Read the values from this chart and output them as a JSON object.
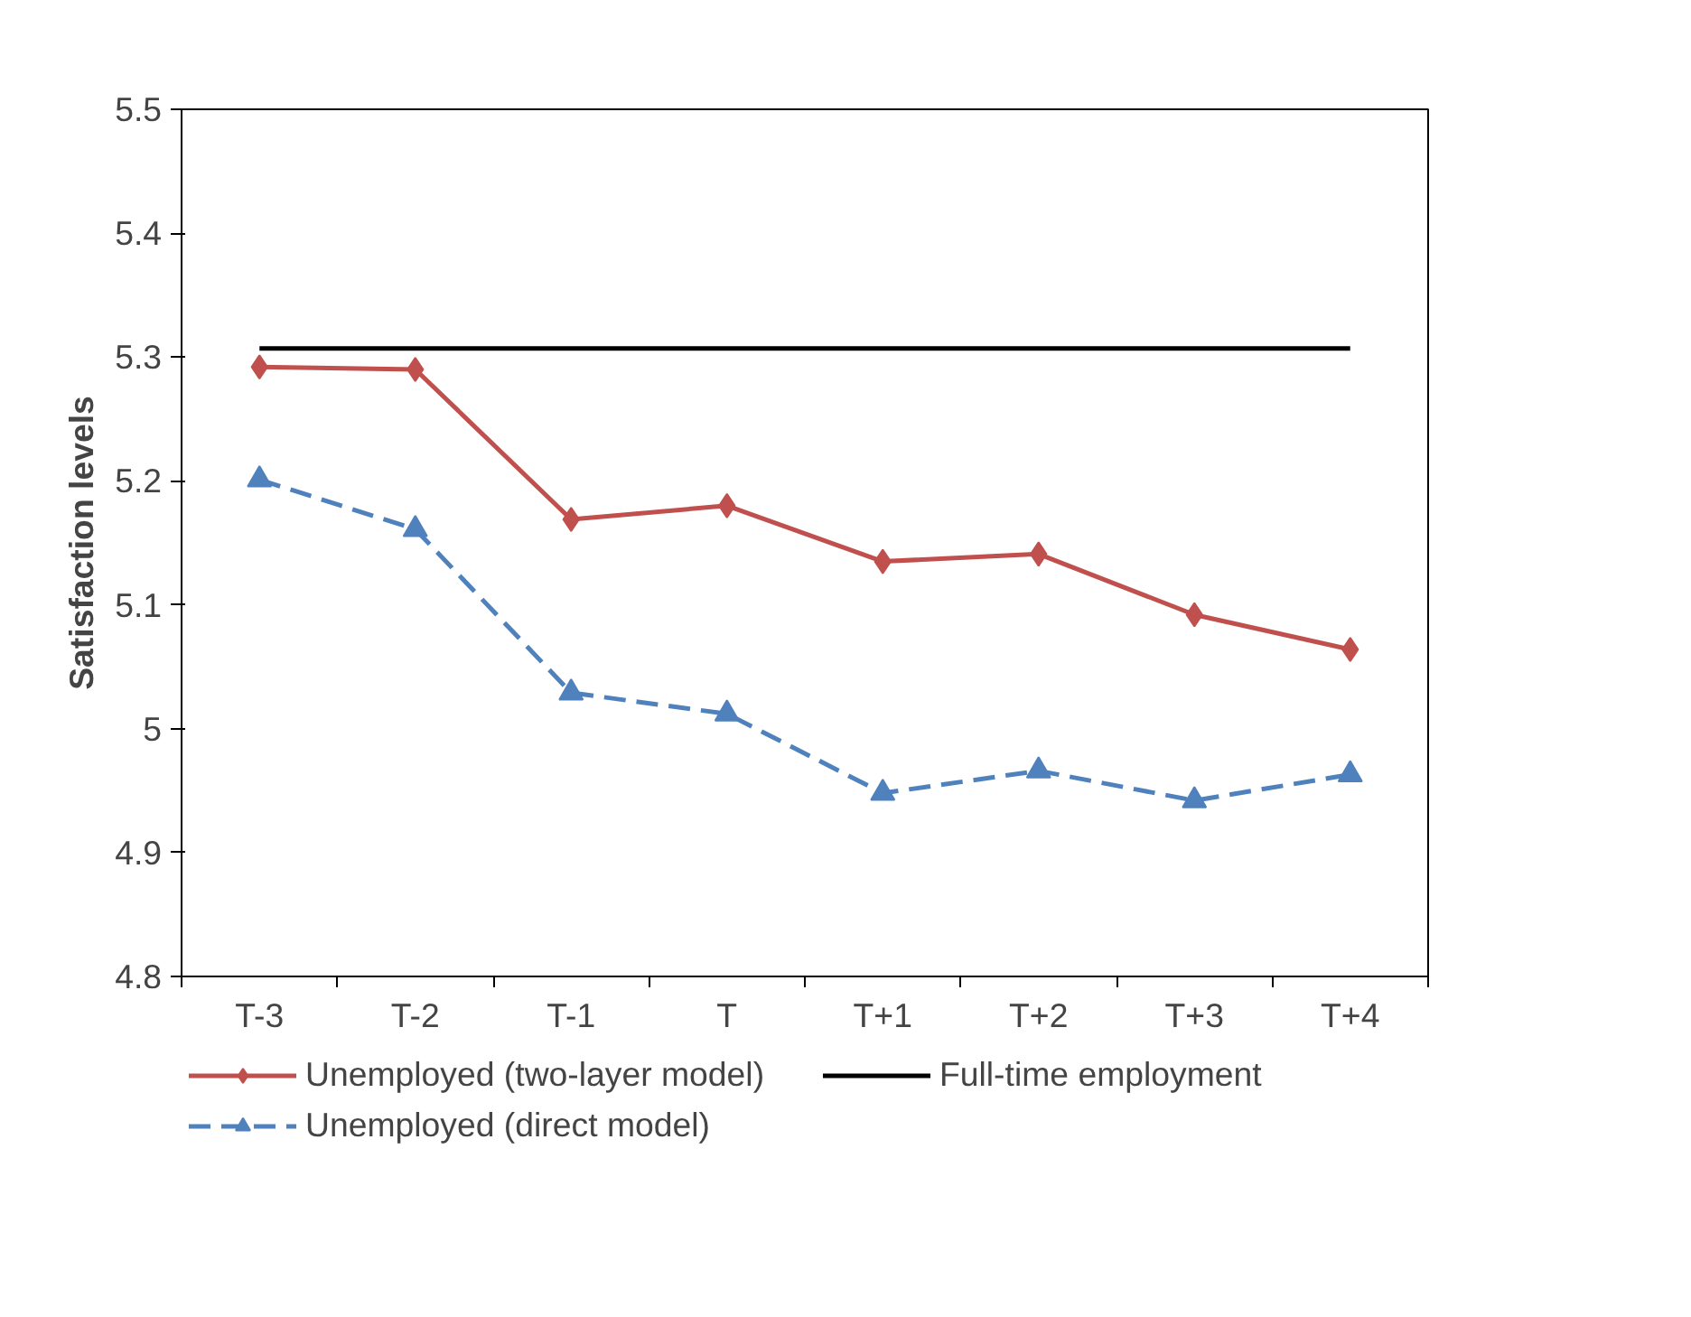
{
  "chart_data": {
    "type": "line",
    "ylabel": "Satisfaction levels",
    "categories": [
      "T-3",
      "T-2",
      "T-1",
      "T",
      "T+1",
      "T+2",
      "T+3",
      "T+4"
    ],
    "series": [
      {
        "name": "Unemployed (two-layer model)",
        "color": "#c0504d",
        "marker": "diamond",
        "line_style": "solid",
        "values": [
          5.292,
          5.29,
          5.169,
          5.18,
          5.135,
          5.141,
          5.092,
          5.064
        ]
      },
      {
        "name": "Unemployed (direct model)",
        "color": "#4f81bd",
        "marker": "triangle",
        "line_style": "dashed",
        "values": [
          5.201,
          5.161,
          5.029,
          5.012,
          4.948,
          4.966,
          4.942,
          4.963
        ]
      },
      {
        "name": "Full-time employment",
        "color": "#000000",
        "marker": "none",
        "line_style": "solid",
        "values": [
          5.307,
          5.307,
          5.307,
          5.307,
          5.307,
          5.307,
          5.307,
          5.307
        ]
      }
    ],
    "ylim": [
      4.8,
      5.5
    ],
    "yticks": [
      4.8,
      4.9,
      5,
      5.1,
      5.2,
      5.3,
      5.4,
      5.5
    ],
    "grid": false,
    "legend": "bottom"
  }
}
